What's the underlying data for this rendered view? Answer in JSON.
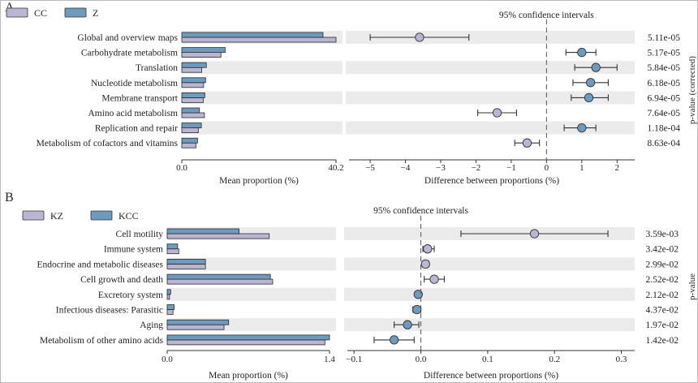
{
  "colors": {
    "series1": "#b9b5d3",
    "series2": "#6e9bbd",
    "stripe": "#ebebeb",
    "point_blue": "#6e9bbd",
    "point_purple": "#b9b5d3"
  },
  "chart_data": [
    {
      "panel": "A",
      "type": "bar",
      "legend": [
        "CC",
        "Z"
      ],
      "categories": [
        "Global and overview maps",
        "Carbohydrate metabolism",
        "Translation",
        "Nucleotide metabolism",
        "Membrane transport",
        "Amino acid metabolism",
        "Replication and repair",
        "Metabolism of cofactors and vitamins"
      ],
      "series": [
        {
          "name": "CC",
          "values": [
            40.2,
            10.2,
            5.2,
            5.7,
            5.6,
            5.9,
            4.3,
            3.7
          ]
        },
        {
          "name": "Z",
          "values": [
            36.8,
            11.3,
            6.4,
            6.2,
            6.0,
            4.6,
            5.1,
            4.1
          ]
        }
      ],
      "xlabel": "Mean proportion (%)",
      "xlim": [
        0,
        40.2
      ],
      "xticks": [
        "0.0",
        "40.2"
      ]
    },
    {
      "panel": "A",
      "type": "scatter",
      "title": "95% confidence intervals",
      "xlabel": "Difference between proportions (%)",
      "xlim": [
        -5.6,
        2.5
      ],
      "xticks": [
        -5,
        -4,
        -3,
        -2,
        -1,
        0,
        1,
        2
      ],
      "xtick_labels": [
        "−5",
        "−4",
        "−3",
        "−2",
        "−1",
        "0",
        "1",
        "2"
      ],
      "points": [
        {
          "value": -3.6,
          "low": -5.0,
          "high": -2.2,
          "color": "purple"
        },
        {
          "value": 1.0,
          "low": 0.55,
          "high": 1.4,
          "color": "blue"
        },
        {
          "value": 1.4,
          "low": 0.8,
          "high": 2.0,
          "color": "blue"
        },
        {
          "value": 1.25,
          "low": 0.75,
          "high": 1.75,
          "color": "blue"
        },
        {
          "value": 1.2,
          "low": 0.7,
          "high": 1.75,
          "color": "blue"
        },
        {
          "value": -1.4,
          "low": -1.95,
          "high": -0.85,
          "color": "purple"
        },
        {
          "value": 1.0,
          "low": 0.5,
          "high": 1.4,
          "color": "blue"
        },
        {
          "value": -0.55,
          "low": -0.9,
          "high": -0.2,
          "color": "purple"
        }
      ],
      "pvalues": [
        "5.11e-05",
        "5.17e-05",
        "5.84e-05",
        "6.18e-05",
        "6.94e-05",
        "7.64e-05",
        "1.18e-04",
        "8.63e-04"
      ],
      "pvalue_label": "p-value (corrected)"
    },
    {
      "panel": "B",
      "type": "bar",
      "legend": [
        "KZ",
        "KCC"
      ],
      "categories": [
        "Cell motility",
        "Immune system",
        "Endocrine and metabolic diseases",
        "Cell growth and death",
        "Excretory system",
        "Infectious diseases: Parasitic",
        "Aging",
        "Metabolism of other amino acids"
      ],
      "series": [
        {
          "name": "KZ",
          "values": [
            0.88,
            0.1,
            0.33,
            0.91,
            0.02,
            0.05,
            0.49,
            1.36
          ]
        },
        {
          "name": "KCC",
          "values": [
            0.62,
            0.09,
            0.33,
            0.89,
            0.03,
            0.06,
            0.53,
            1.4
          ]
        }
      ],
      "xlabel": "Mean proportion (%)",
      "xlim": [
        0,
        1.4
      ],
      "xticks": [
        "0.0",
        "1.4"
      ]
    },
    {
      "panel": "B",
      "type": "scatter",
      "title": "95% confidence intervals",
      "xlabel": "Difference between proportions (%)",
      "xlim": [
        -0.11,
        0.32
      ],
      "xticks": [
        -0.1,
        0,
        0.1,
        0.2,
        0.3
      ],
      "xtick_labels": [
        "−0.1",
        "0.0",
        "0.1",
        "0.2",
        "0.3"
      ],
      "points": [
        {
          "value": 0.17,
          "low": 0.06,
          "high": 0.28,
          "color": "purple"
        },
        {
          "value": 0.01,
          "low": 0.003,
          "high": 0.02,
          "color": "purple"
        },
        {
          "value": 0.007,
          "low": 0.002,
          "high": 0.012,
          "color": "purple"
        },
        {
          "value": 0.02,
          "low": 0.005,
          "high": 0.035,
          "color": "purple"
        },
        {
          "value": -0.004,
          "low": -0.008,
          "high": 0.0,
          "color": "blue"
        },
        {
          "value": -0.006,
          "low": -0.012,
          "high": 0.0,
          "color": "blue"
        },
        {
          "value": -0.02,
          "low": -0.04,
          "high": -0.003,
          "color": "blue"
        },
        {
          "value": -0.04,
          "low": -0.07,
          "high": -0.01,
          "color": "blue"
        }
      ],
      "pvalues": [
        "3.59e-03",
        "3.42e-02",
        "2.99e-02",
        "2.52e-02",
        "2.12e-02",
        "4.37e-02",
        "1.97e-02",
        "1.42e-02"
      ],
      "pvalue_label": "p-value"
    }
  ]
}
